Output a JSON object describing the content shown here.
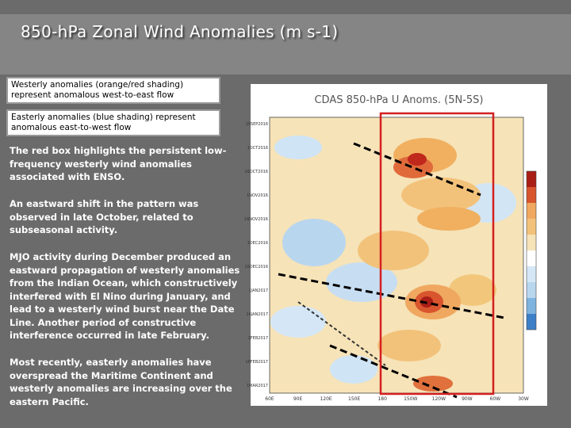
{
  "header": {
    "title": "850-hPa Zonal Wind Anomalies (m s-1)"
  },
  "callouts": [
    "Westerly anomalies (orange/red shading) represent anomalous west-to-east flow",
    "Easterly anomalies (blue shading) represent anomalous east-to-west flow"
  ],
  "paragraphs": [
    "The red box highlights the persistent low-frequency westerly wind anomalies associated with ENSO.",
    "An eastward shift in the pattern was observed in late October, related to subseasonal activity.",
    "MJO activity during December produced an eastward propagation of westerly anomalies from the Indian Ocean, which constructively interfered with El Nino during January, and lead to a westerly wind burst near the Date Line. Another period of constructive interference occurred in late February.",
    "Most recently, easterly anomalies have overspread the Maritime Continent and westerly anomalies are increasing over the eastern Pacific."
  ],
  "figure": {
    "title": "CDAS 850-hPa U Anoms. (5N-5S)",
    "dates": [
      "15SEP2016",
      "1OCT2016",
      "16OCT2016",
      "1NOV2016",
      "16NOV2016",
      "1DEC2016",
      "16DEC2016",
      "1JAN2017",
      "16JAN2017",
      "1FEB2017",
      "16FEB2017",
      "1MAR2017"
    ],
    "longitudes": [
      "60E",
      "90E",
      "120E",
      "150E",
      "180",
      "150W",
      "120W",
      "90W",
      "60W",
      "30W"
    ]
  }
}
